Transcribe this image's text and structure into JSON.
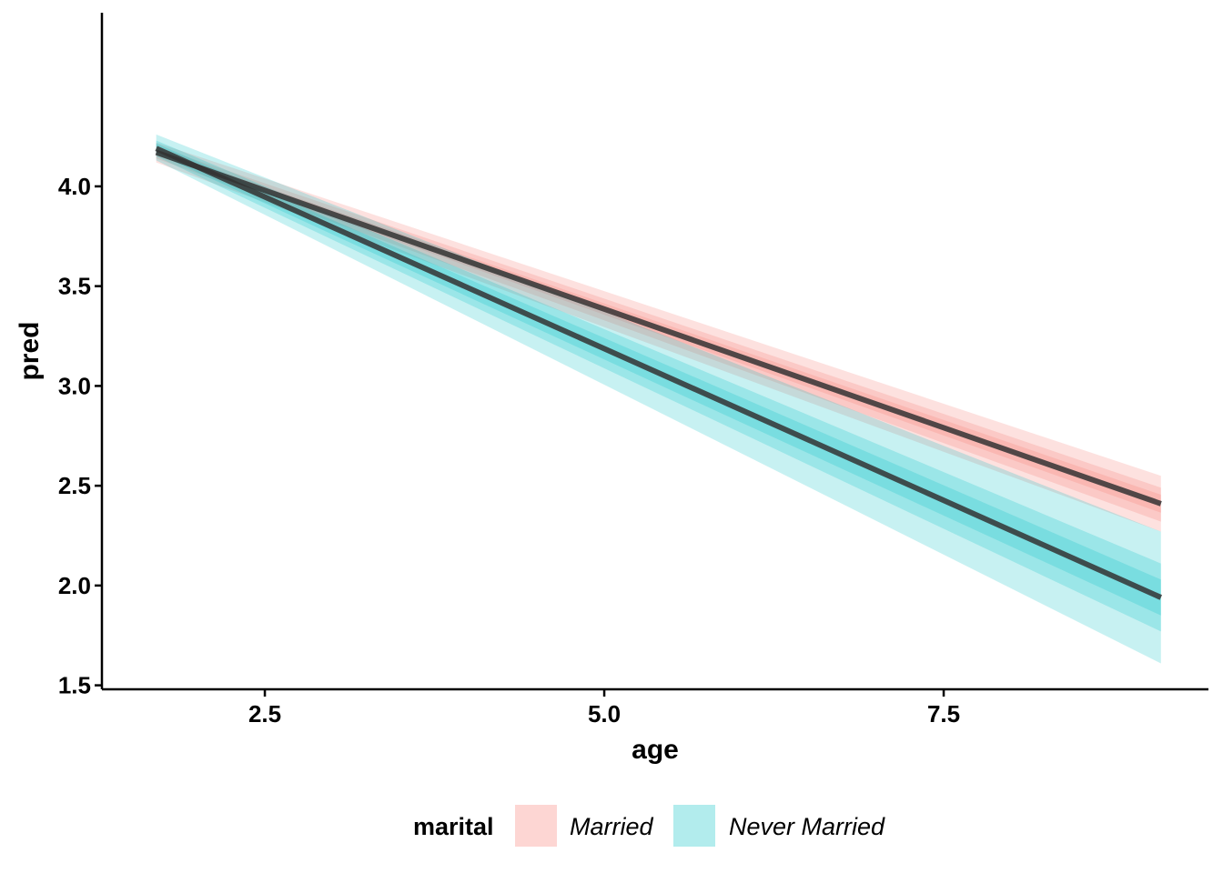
{
  "chart_data": {
    "type": "line",
    "xlabel": "age",
    "ylabel": "pred",
    "xlim": [
      1.3,
      9.45
    ],
    "ylim": [
      1.48,
      4.87
    ],
    "x_ticks": [
      2.5,
      5.0,
      7.5
    ],
    "x_tick_labels": [
      "2.5",
      "5.0",
      "7.5"
    ],
    "y_ticks": [
      1.5,
      2.0,
      2.5,
      3.0,
      3.5,
      4.0
    ],
    "y_tick_labels": [
      "1.5",
      "2.0",
      "2.5",
      "3.0",
      "3.5",
      "4.0"
    ],
    "grid": false,
    "legend": {
      "title": "marital",
      "placement": "bottom",
      "entries": [
        "Married",
        "Never Married"
      ]
    },
    "line_color": "#333333",
    "series": [
      {
        "name": "Married",
        "fill_color": "#F8766D",
        "x": [
          1.7,
          9.1
        ],
        "y": [
          4.17,
          2.41
        ],
        "bands": [
          {
            "lower": [
              4.12,
              2.27
            ],
            "upper": [
              4.22,
              2.55
            ]
          },
          {
            "lower": [
              4.14,
              2.32
            ],
            "upper": [
              4.2,
              2.49
            ]
          },
          {
            "lower": [
              4.155,
              2.365
            ],
            "upper": [
              4.185,
              2.455
            ]
          }
        ]
      },
      {
        "name": "Never Married",
        "fill_color": "#00BFC4",
        "x": [
          1.7,
          9.1
        ],
        "y": [
          4.19,
          1.94
        ],
        "bands": [
          {
            "lower": [
              4.13,
              1.61
            ],
            "upper": [
              4.26,
              2.27
            ]
          },
          {
            "lower": [
              4.15,
              1.77
            ],
            "upper": [
              4.23,
              2.11
            ]
          },
          {
            "lower": [
              4.165,
              1.85
            ],
            "upper": [
              4.215,
              2.03
            ]
          }
        ]
      }
    ]
  }
}
